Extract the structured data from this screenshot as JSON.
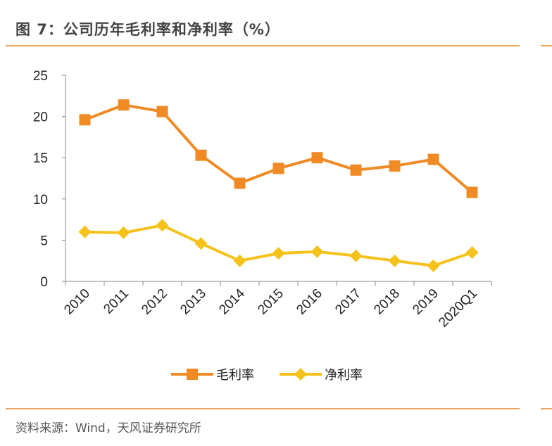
{
  "title": "图 7：公司历年毛利率和净利率（%）",
  "source": "资料来源：Wind，天风证券研究所",
  "colors": {
    "accent_rule": "#e9a55a",
    "gross_margin": "#F08A24",
    "net_margin": "#F5C21B"
  },
  "chart_data": {
    "type": "line",
    "title": "",
    "xlabel": "",
    "ylabel": "",
    "ylim": [
      0,
      25
    ],
    "yticks": [
      0,
      5,
      10,
      15,
      20,
      25
    ],
    "grid": false,
    "legend": "bottom",
    "categories": [
      "2010",
      "2011",
      "2012",
      "2013",
      "2014",
      "2015",
      "2016",
      "2017",
      "2018",
      "2019",
      "2020Q1"
    ],
    "series": [
      {
        "name": "毛利率",
        "marker": "square",
        "values": [
          19.6,
          21.4,
          20.6,
          15.3,
          11.9,
          13.7,
          15.0,
          13.5,
          14.0,
          14.8,
          10.8
        ]
      },
      {
        "name": "净利率",
        "marker": "diamond",
        "values": [
          6.0,
          5.9,
          6.8,
          4.6,
          2.5,
          3.4,
          3.6,
          3.1,
          2.5,
          1.9,
          3.5
        ]
      }
    ]
  }
}
